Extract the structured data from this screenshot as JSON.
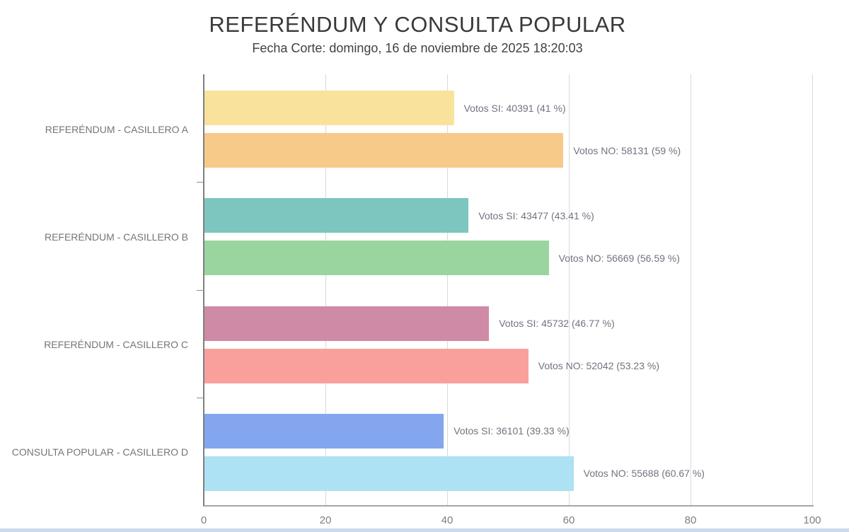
{
  "header": {
    "title": "REFERÉNDUM Y CONSULTA POPULAR",
    "subtitle": "Fecha Corte: domingo, 16 de noviembre de 2025 18:20:03"
  },
  "chart_data": {
    "type": "bar",
    "orientation": "horizontal",
    "title": "REFERÉNDUM Y CONSULTA POPULAR",
    "subtitle": "Fecha Corte: domingo, 16 de noviembre de 2025 18:20:03",
    "xlabel": "",
    "ylabel": "",
    "xlim": [
      0,
      100
    ],
    "x_ticks": [
      0,
      20,
      40,
      60,
      80,
      100
    ],
    "grid": "vertical",
    "legend": "none",
    "categories": [
      "REFERÉNDUM - CASILLERO A",
      "REFERÉNDUM - CASILLERO B",
      "REFERÉNDUM - CASILLERO C",
      "CONSULTA POPULAR - CASILLERO D"
    ],
    "series": [
      {
        "name": "Votos SI",
        "votes": [
          40391,
          43477,
          45732,
          36101
        ],
        "pct": [
          41,
          43.41,
          46.77,
          39.33
        ]
      },
      {
        "name": "Votos NO",
        "votes": [
          58131,
          56669,
          52042,
          55688
        ],
        "pct": [
          59,
          56.59,
          53.23,
          60.67
        ]
      }
    ],
    "groups": [
      {
        "category": "REFERÉNDUM - CASILLERO A",
        "bars": [
          {
            "series": "Votos SI",
            "votes": 40391,
            "pct": 41,
            "label": "Votos SI: 40391 (41 %)",
            "color": "#F9E39C"
          },
          {
            "series": "Votos NO",
            "votes": 58131,
            "pct": 59,
            "label": "Votos NO: 58131 (59 %)",
            "color": "#F7CA8A"
          }
        ]
      },
      {
        "category": "REFERÉNDUM - CASILLERO B",
        "bars": [
          {
            "series": "Votos SI",
            "votes": 43477,
            "pct": 43.41,
            "label": "Votos SI: 43477 (43.41 %)",
            "color": "#7CC6BF"
          },
          {
            "series": "Votos NO",
            "votes": 56669,
            "pct": 56.59,
            "label": "Votos NO: 56669 (56.59 %)",
            "color": "#9AD5A0"
          }
        ]
      },
      {
        "category": "REFERÉNDUM - CASILLERO C",
        "bars": [
          {
            "series": "Votos SI",
            "votes": 45732,
            "pct": 46.77,
            "label": "Votos SI: 45732 (46.77 %)",
            "color": "#CF8AA5"
          },
          {
            "series": "Votos NO",
            "votes": 52042,
            "pct": 53.23,
            "label": "Votos NO: 52042 (53.23 %)",
            "color": "#F9A09D"
          }
        ]
      },
      {
        "category": "CONSULTA POPULAR - CASILLERO D",
        "bars": [
          {
            "series": "Votos SI",
            "votes": 36101,
            "pct": 39.33,
            "label": "Votos SI: 36101 (39.33 %)",
            "color": "#83A6EF"
          },
          {
            "series": "Votos NO",
            "votes": 55688,
            "pct": 60.67,
            "label": "Votos NO: 55688 (60.67 %)",
            "color": "#ADE1F4"
          }
        ]
      }
    ],
    "colors": {
      "grid": "#D9D9D9",
      "y_axis": "#7F7F7F",
      "x_axis": "#A6A6A6",
      "category_label": "#757575",
      "bar_label": "#6F747E",
      "tick_label": "#7B7F85",
      "bottom_strip": "#CCD9EA"
    }
  }
}
